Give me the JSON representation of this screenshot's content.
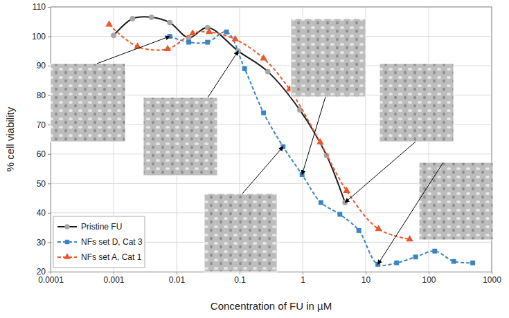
{
  "chart_data": {
    "type": "line",
    "x_label": "Concentration of FU in µM",
    "y_label": "% cell viability",
    "log": "x",
    "grid": true,
    "legend": "lower left",
    "xlim": [
      0.0001,
      1000
    ],
    "xticks": [
      0.0001,
      0.001,
      0.01,
      0.1,
      1,
      10,
      100,
      1000
    ],
    "ylim": [
      20,
      110
    ],
    "yticks": [
      20,
      30,
      40,
      50,
      60,
      70,
      80,
      90,
      100,
      110
    ],
    "series": [
      {
        "name": "Pristine FU",
        "color": "#1a1a1a",
        "marker": "circle",
        "line_style": "solid",
        "x": [
          0.001,
          0.002,
          0.004,
          0.0078,
          0.0156,
          0.031,
          0.095,
          0.28,
          0.9,
          2.4,
          4.7
        ],
        "values": [
          100.3,
          106,
          106.5,
          104.7,
          99.5,
          103,
          95,
          88,
          75,
          59.5,
          43.5
        ]
      },
      {
        "name": "NFs set D, Cat 3",
        "color": "#3b84c4",
        "marker": "square",
        "line_style": "dashed",
        "x": [
          0.0078,
          0.0156,
          0.031,
          0.062,
          0.12,
          0.24,
          0.49,
          0.98,
          1.95,
          3.9,
          7.8,
          15.6,
          31,
          62,
          125,
          250,
          500
        ],
        "values": [
          100,
          98,
          98,
          101.5,
          89,
          74,
          62.5,
          53,
          43.5,
          39.5,
          34,
          22.5,
          23,
          25,
          27,
          23.5,
          23
        ]
      },
      {
        "name": "NFs set A, Cat 1",
        "color": "#e8582b",
        "marker": "triangle",
        "line_style": "dashed",
        "x": [
          0.00085,
          0.0024,
          0.0072,
          0.018,
          0.033,
          0.085,
          0.24,
          0.62,
          1.9,
          5,
          16,
          50
        ],
        "values": [
          104,
          96.5,
          95.7,
          101,
          101.5,
          99,
          92.5,
          82,
          64,
          47.5,
          34.5,
          31
        ]
      }
    ]
  }
}
